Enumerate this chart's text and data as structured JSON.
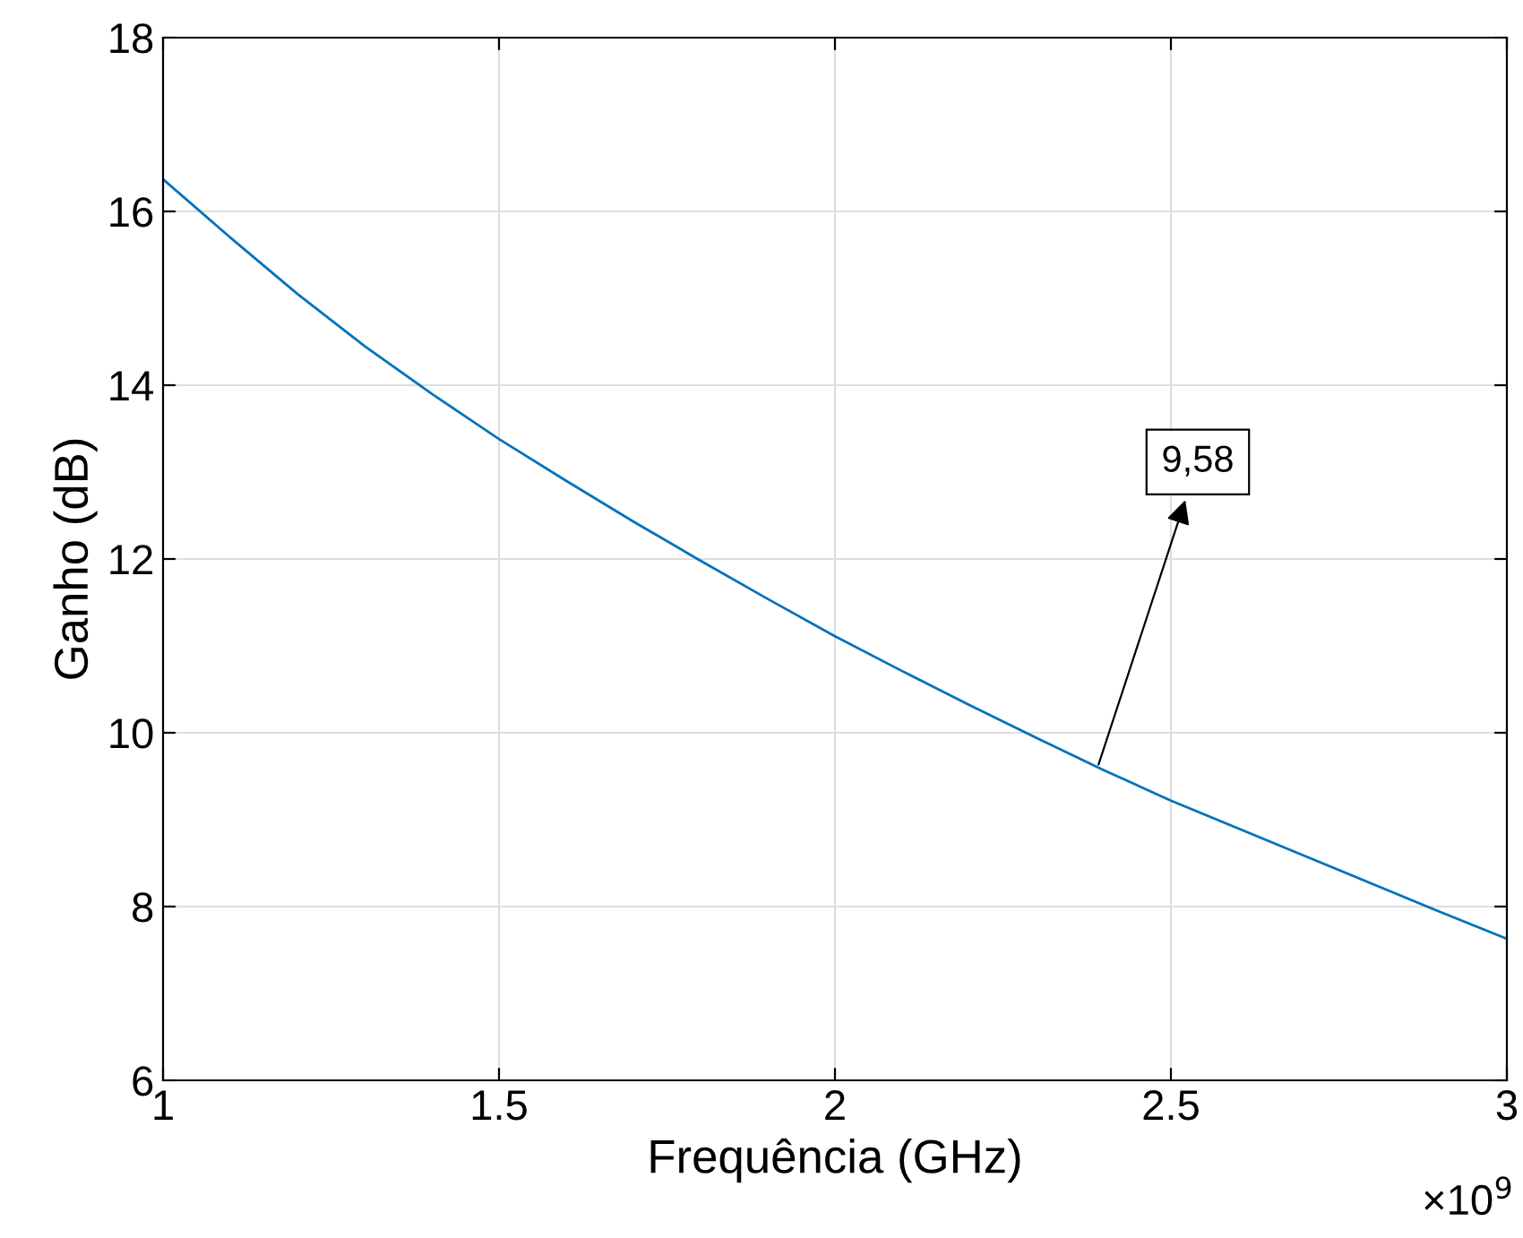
{
  "chart_data": {
    "type": "line",
    "xlabel": "Frequência (GHz)",
    "ylabel": "Ganho (dB)",
    "x": [
      1.0,
      1.1,
      1.2,
      1.3,
      1.4,
      1.5,
      1.6,
      1.7,
      1.8,
      1.9,
      2.0,
      2.1,
      2.2,
      2.3,
      2.4,
      2.5,
      2.6,
      2.7,
      2.8,
      2.9,
      3.0
    ],
    "series": [
      {
        "color": "#0072bd",
        "values": [
          16.37,
          15.7,
          15.05,
          14.45,
          13.9,
          13.38,
          12.9,
          12.43,
          11.98,
          11.54,
          11.11,
          10.71,
          10.32,
          9.94,
          9.57,
          9.22,
          8.9,
          8.58,
          8.26,
          7.94,
          7.63
        ]
      }
    ],
    "xlim": [
      1,
      3
    ],
    "xticks": [
      1,
      1.5,
      2,
      2.5,
      3
    ],
    "ylim": [
      6,
      18
    ],
    "yticks": [
      6,
      8,
      10,
      12,
      14,
      16,
      18
    ],
    "grid": true,
    "line_style": "solid",
    "marker": "none",
    "annotations": [
      {
        "text": "9,58",
        "x": 2.39,
        "y": 9.58
      },
      "×10$^{9}$"
    ]
  }
}
